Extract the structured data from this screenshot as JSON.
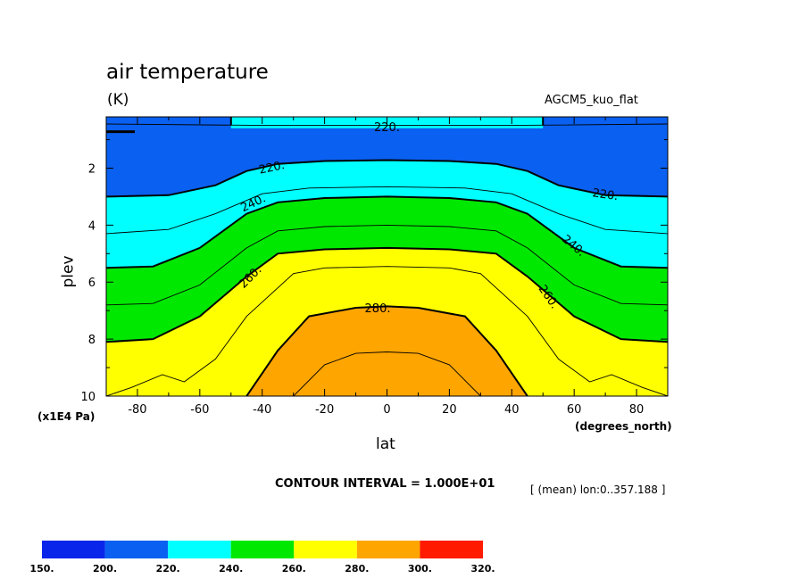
{
  "chart_data": {
    "type": "contour",
    "title": "air temperature",
    "units_label": "(K)",
    "model_label": "AGCM5_kuo_flat",
    "xlabel": "lat",
    "xunit": "(degrees_north)",
    "ylabel": "plev",
    "yunit": "(x1E4 Pa)",
    "xlim": [
      -90,
      90
    ],
    "ylim": [
      0.2,
      10
    ],
    "y_inverted": true,
    "xticks": [
      -80,
      -60,
      -40,
      -20,
      0,
      20,
      40,
      60,
      80
    ],
    "yticks": [
      2,
      4,
      6,
      8,
      10
    ],
    "contour_interval_text": "CONTOUR INTERVAL = 1.000E+01",
    "mean_text": "[ (mean) lon:0..357.188 ]",
    "levels": [
      150,
      200,
      220,
      240,
      260,
      280,
      300,
      320
    ],
    "level_labels": [
      "150.",
      "200.",
      "220.",
      "240.",
      "260.",
      "280.",
      "300.",
      "320."
    ],
    "fill_colors": [
      "#0a25ea",
      "#0a60f0",
      "#00ffff",
      "#00e800",
      "#ffff00",
      "#ffa500",
      "#ff1a00"
    ],
    "contours": [
      {
        "level": 210,
        "points": [
          [
            -90,
            0.45
          ],
          [
            -40,
            0.5
          ],
          [
            -30,
            0.5
          ],
          [
            25,
            0.5
          ],
          [
            30,
            0.5
          ],
          [
            40,
            0.5
          ],
          [
            90,
            0.45
          ]
        ]
      },
      {
        "level": 220,
        "points": [
          [
            -90,
            3.0
          ],
          [
            -70,
            2.95
          ],
          [
            -55,
            2.6
          ],
          [
            -45,
            2.1
          ],
          [
            -35,
            1.85
          ],
          [
            -20,
            1.75
          ],
          [
            0,
            1.72
          ],
          [
            20,
            1.75
          ],
          [
            35,
            1.85
          ],
          [
            45,
            2.1
          ],
          [
            55,
            2.6
          ],
          [
            70,
            2.95
          ],
          [
            90,
            3.0
          ]
        ]
      },
      {
        "level": 220,
        "points": [
          [
            -50,
            0.2
          ],
          [
            -50,
            0.5
          ]
        ]
      },
      {
        "level": 220,
        "points": [
          [
            50,
            0.2
          ],
          [
            50,
            0.5
          ]
        ]
      },
      {
        "level": 230,
        "points": [
          [
            -90,
            4.3
          ],
          [
            -70,
            4.15
          ],
          [
            -55,
            3.6
          ],
          [
            -40,
            2.9
          ],
          [
            -25,
            2.7
          ],
          [
            0,
            2.65
          ],
          [
            25,
            2.7
          ],
          [
            40,
            2.9
          ],
          [
            55,
            3.6
          ],
          [
            70,
            4.15
          ],
          [
            90,
            4.3
          ]
        ]
      },
      {
        "level": 240,
        "points": [
          [
            -90,
            5.5
          ],
          [
            -75,
            5.45
          ],
          [
            -60,
            4.8
          ],
          [
            -45,
            3.6
          ],
          [
            -35,
            3.2
          ],
          [
            -20,
            3.05
          ],
          [
            0,
            3.0
          ],
          [
            20,
            3.05
          ],
          [
            35,
            3.2
          ],
          [
            45,
            3.6
          ],
          [
            60,
            4.8
          ],
          [
            75,
            5.45
          ],
          [
            90,
            5.5
          ]
        ]
      },
      {
        "level": 250,
        "points": [
          [
            -90,
            6.8
          ],
          [
            -75,
            6.75
          ],
          [
            -60,
            6.1
          ],
          [
            -45,
            4.8
          ],
          [
            -35,
            4.2
          ],
          [
            -20,
            4.05
          ],
          [
            0,
            4.0
          ],
          [
            20,
            4.05
          ],
          [
            35,
            4.2
          ],
          [
            45,
            4.8
          ],
          [
            60,
            6.1
          ],
          [
            75,
            6.75
          ],
          [
            90,
            6.8
          ]
        ]
      },
      {
        "level": 260,
        "points": [
          [
            -90,
            8.1
          ],
          [
            -75,
            8.0
          ],
          [
            -60,
            7.2
          ],
          [
            -45,
            5.8
          ],
          [
            -35,
            5.0
          ],
          [
            -20,
            4.85
          ],
          [
            0,
            4.8
          ],
          [
            20,
            4.85
          ],
          [
            35,
            5.0
          ],
          [
            45,
            5.8
          ],
          [
            60,
            7.2
          ],
          [
            75,
            8.0
          ],
          [
            90,
            8.1
          ]
        ]
      },
      {
        "level": 270,
        "points": [
          [
            -90,
            10.0
          ],
          [
            -82,
            9.7
          ],
          [
            -72,
            9.25
          ],
          [
            -65,
            9.5
          ],
          [
            -55,
            8.7
          ],
          [
            -45,
            7.2
          ],
          [
            -30,
            5.7
          ],
          [
            -20,
            5.5
          ],
          [
            0,
            5.45
          ],
          [
            20,
            5.5
          ],
          [
            30,
            5.7
          ],
          [
            45,
            7.2
          ],
          [
            55,
            8.7
          ],
          [
            65,
            9.5
          ],
          [
            72,
            9.25
          ],
          [
            82,
            9.7
          ],
          [
            90,
            10.0
          ]
        ]
      },
      {
        "level": 280,
        "points": [
          [
            -45,
            10.0
          ],
          [
            -35,
            8.4
          ],
          [
            -25,
            7.2
          ],
          [
            -10,
            6.9
          ],
          [
            0,
            6.85
          ],
          [
            10,
            6.9
          ],
          [
            25,
            7.2
          ],
          [
            35,
            8.4
          ],
          [
            45,
            10.0
          ]
        ]
      },
      {
        "level": 290,
        "points": [
          [
            -30,
            10.0
          ],
          [
            -20,
            8.9
          ],
          [
            -10,
            8.5
          ],
          [
            0,
            8.45
          ],
          [
            10,
            8.5
          ],
          [
            20,
            8.9
          ],
          [
            30,
            10.0
          ]
        ]
      }
    ],
    "contour_labels": [
      {
        "text": "220.",
        "lat": 0,
        "plev": 0.55,
        "angle": 0
      },
      {
        "text": "220.",
        "lat": -37,
        "plev": 1.95,
        "angle": -12
      },
      {
        "text": "220.",
        "lat": 70,
        "plev": 2.9,
        "angle": 8
      },
      {
        "text": "240.",
        "lat": -43,
        "plev": 3.2,
        "angle": -25
      },
      {
        "text": "240.",
        "lat": 60,
        "plev": 4.7,
        "angle": 40
      },
      {
        "text": "260.",
        "lat": -44,
        "plev": 5.8,
        "angle": -45
      },
      {
        "text": "260.",
        "lat": 52,
        "plev": 6.5,
        "angle": 55
      },
      {
        "text": "280.",
        "lat": -3,
        "plev": 6.9,
        "angle": 0
      }
    ]
  }
}
